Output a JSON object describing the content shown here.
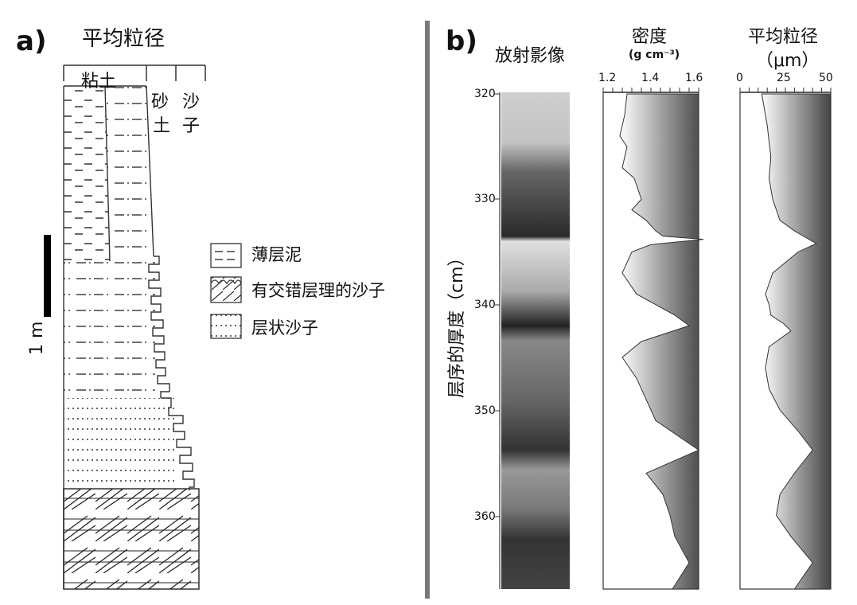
{
  "panel_a": {
    "label": "a)",
    "title": "平均粒径",
    "scale_label": "1 m",
    "grain_classes": {
      "clay": "粘土",
      "silt_1": "砂",
      "silt_2": "土",
      "sand_1": "沙",
      "sand_2": "子"
    },
    "legend": [
      {
        "pattern": "thin-mud",
        "label": "薄层泥"
      },
      {
        "pattern": "cross-bedded-sand",
        "label": "有交错层理的沙子"
      },
      {
        "pattern": "laminated-sand",
        "label": "层状沙子"
      }
    ]
  },
  "panel_b": {
    "label": "b)",
    "depth_axis_label": "层序的厚度（cm）",
    "depth_ticks": [
      "320",
      "330",
      "340",
      "350",
      "360"
    ],
    "radiograph_title": "放射影像",
    "density": {
      "title": "密度",
      "unit": "(g cm⁻³)",
      "ticks": [
        "1.2",
        "1.4",
        "1.6"
      ]
    },
    "grain": {
      "title": "平均粒径",
      "unit": "（μm）",
      "ticks": [
        "0",
        "25",
        "50"
      ]
    }
  },
  "chart_data": [
    {
      "type": "area",
      "xlabel": "密度 (g cm⁻³)",
      "ylabel": "层序的厚度（cm）",
      "xlim": [
        1.2,
        1.6
      ],
      "ylim": [
        320,
        367
      ],
      "series": [
        {
          "x": [
            1.3,
            1.29,
            1.27,
            1.3,
            1.28,
            1.33,
            1.36,
            1.32,
            1.38,
            1.42,
            1.45,
            1.62,
            1.4,
            1.32,
            1.28,
            1.34,
            1.5,
            1.56,
            1.36,
            1.28,
            1.34,
            1.38,
            1.42,
            1.6,
            1.38,
            1.45,
            1.48,
            1.5,
            1.56,
            1.49
          ],
          "y": [
            320,
            322,
            324,
            325,
            327,
            328,
            330,
            331,
            332,
            333,
            333.5,
            333.8,
            334.3,
            335,
            337,
            339,
            341,
            342,
            343.5,
            345,
            347,
            349,
            351,
            353.8,
            356,
            358,
            360,
            362,
            364.5,
            367
          ]
        }
      ]
    },
    {
      "type": "area",
      "xlabel": "平均粒径（μm）",
      "ylabel": "层序的厚度（cm）",
      "xlim": [
        0,
        50
      ],
      "ylim": [
        320,
        367
      ],
      "series": [
        {
          "x": [
            12,
            15,
            17,
            16,
            18,
            22,
            30,
            42,
            32,
            18,
            14,
            16,
            17,
            24,
            28,
            16,
            14,
            16,
            22,
            32,
            40,
            30,
            22,
            20,
            28,
            40,
            30
          ],
          "y": [
            320,
            323,
            326,
            328,
            330,
            332,
            333,
            334.2,
            335,
            337,
            339,
            340,
            341,
            341.8,
            342.5,
            344,
            346,
            348,
            350,
            352,
            353.8,
            356,
            358,
            360,
            362,
            364.5,
            367
          ]
        }
      ]
    }
  ]
}
